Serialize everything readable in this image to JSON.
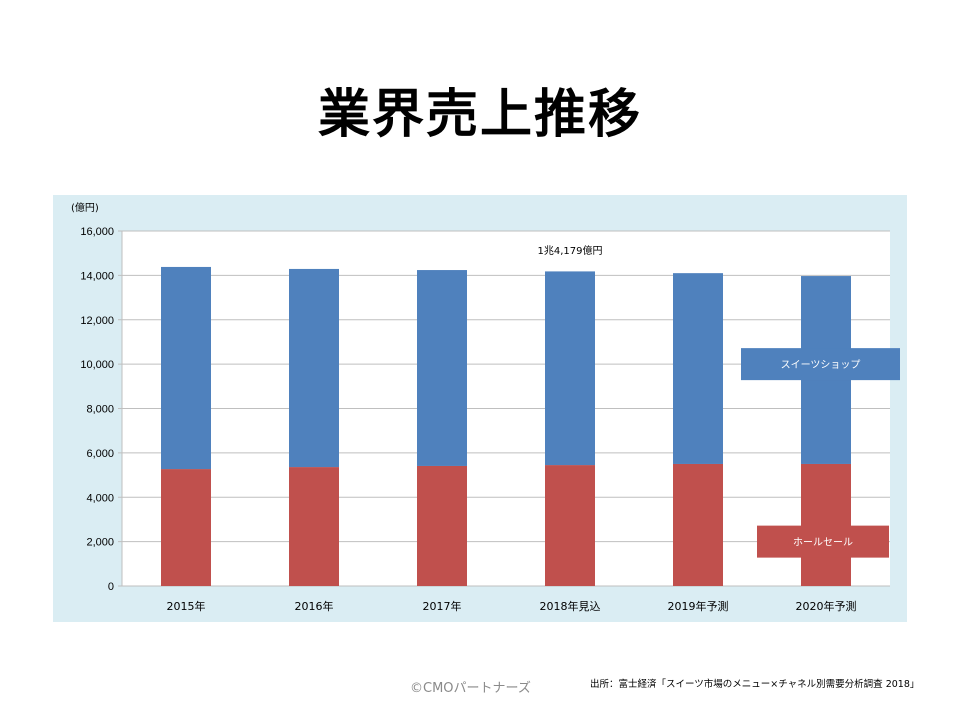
{
  "title": "業界売上推移",
  "chart_data": {
    "type": "bar",
    "stacked": true,
    "unit_label": "(億円)",
    "categories": [
      "2015年",
      "2016年",
      "2017年",
      "2018年見込",
      "2019年予測",
      "2020年予測"
    ],
    "series": [
      {
        "name": "ホールセール",
        "color": "#c0504d",
        "values": [
          5270,
          5360,
          5410,
          5450,
          5500,
          5500
        ]
      },
      {
        "name": "スイーツショップ",
        "color": "#4f81bd",
        "values": [
          9110,
          8930,
          8830,
          8729,
          8600,
          8470
        ]
      }
    ],
    "ylim": [
      0,
      16000
    ],
    "yticks": [
      0,
      2000,
      4000,
      6000,
      8000,
      10000,
      12000,
      14000,
      16000
    ],
    "ytick_labels": [
      "0",
      "2,000",
      "4,000",
      "6,000",
      "8,000",
      "10,000",
      "12,000",
      "14,000",
      "16,000"
    ],
    "annotation": "1兆4,179億円",
    "annotation_category_index": 3,
    "grid": true,
    "legend_placement": "right"
  },
  "footer": {
    "copyright": "©CMOパートナーズ",
    "source": "出所：富士経済「スイーツ市場のメニュー×チャネル別需要分析調査 2018」"
  }
}
